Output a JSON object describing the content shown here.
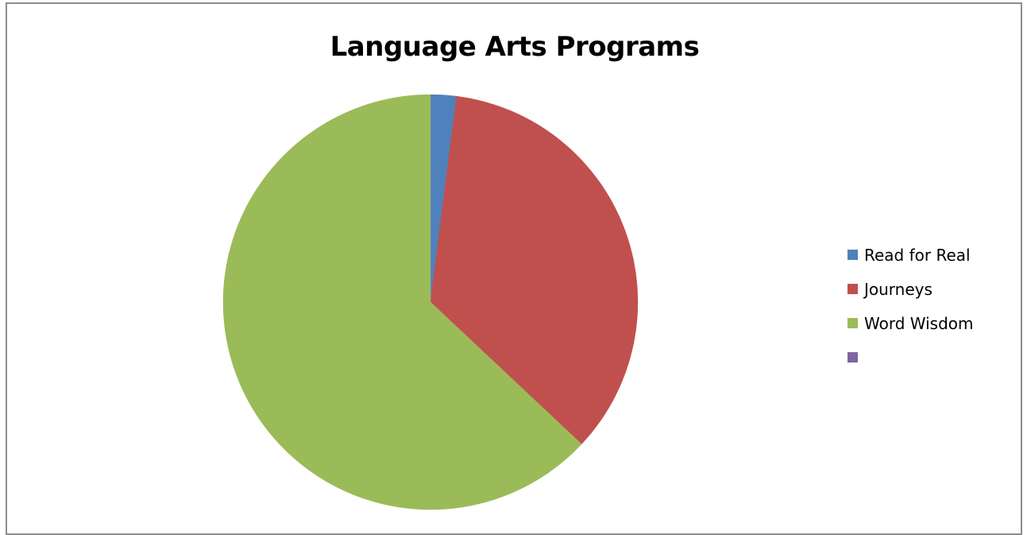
{
  "chart_data": {
    "type": "pie",
    "title": "Language Arts Programs",
    "categories": [
      "Read for Real",
      "Journeys",
      "Word Wisdom",
      ""
    ],
    "values": [
      2,
      35,
      63,
      0
    ],
    "colors": [
      "#4f81bd",
      "#c0504d",
      "#9bbb59",
      "#8064a2"
    ],
    "start_angle_deg": 0,
    "direction": "clockwise",
    "legend_position": "right"
  }
}
